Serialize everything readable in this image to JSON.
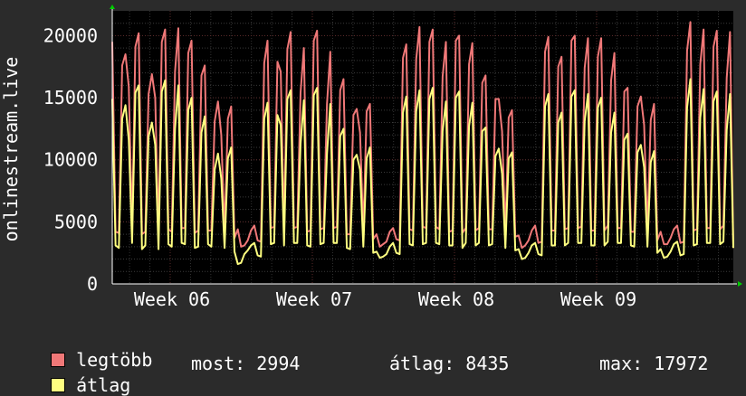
{
  "chart_data": {
    "type": "line",
    "ylabel": "onlinestream.live",
    "ylim": [
      0,
      22000
    ],
    "yticks": [
      0,
      5000,
      10000,
      15000,
      20000
    ],
    "xticks": [
      "Week 06",
      "Week 07",
      "Week 08",
      "Week 09"
    ],
    "grid": true,
    "background": "#000000",
    "series": [
      {
        "name": "legtöbb",
        "color": "#f07878",
        "values": [
          19500,
          4200,
          4100,
          17600,
          18500,
          15900,
          4500,
          19100,
          20200,
          4000,
          4200,
          15300,
          16900,
          15000,
          4100,
          19500,
          20500,
          4400,
          4200,
          17100,
          20600,
          4500,
          4500,
          18600,
          19600,
          4100,
          4300,
          16800,
          17600,
          4300,
          4300,
          13100,
          14700,
          12000,
          4100,
          13300,
          14300,
          3700,
          4400,
          3000,
          3100,
          3500,
          4300,
          4700,
          3500,
          3400,
          17800,
          19600,
          4500,
          4600,
          17900,
          17100,
          4300,
          18900,
          20300,
          4500,
          4600,
          15400,
          19000,
          4200,
          4300,
          19600,
          20400,
          4400,
          4500,
          14500,
          18700,
          4500,
          4600,
          15600,
          16500,
          4000,
          4000,
          13600,
          14100,
          12200,
          4200,
          13900,
          14500,
          3600,
          4000,
          3000,
          3200,
          3400,
          4200,
          4500,
          3600,
          3500,
          18200,
          19300,
          4400,
          4300,
          18100,
          20700,
          4600,
          4500,
          19500,
          20500,
          4600,
          4400,
          16700,
          19500,
          4200,
          4300,
          19600,
          20000,
          4100,
          4500,
          17700,
          19400,
          4300,
          4500,
          16200,
          16800,
          4400,
          4400,
          14900,
          14900,
          12300,
          4100,
          13400,
          14000,
          3800,
          3900,
          2900,
          3100,
          3500,
          4300,
          4700,
          3300,
          3400,
          18700,
          19900,
          4300,
          4300,
          17500,
          18300,
          4400,
          4500,
          19600,
          20000,
          4500,
          4600,
          17400,
          19800,
          4300,
          4300,
          18300,
          19800,
          4300,
          4700,
          16400,
          18600,
          4500,
          4500,
          15500,
          15800,
          4200,
          4200,
          14300,
          15100,
          12800,
          4200,
          13200,
          14500,
          3500,
          4200,
          3200,
          3200,
          3700,
          4400,
          4700,
          3300,
          3400,
          18800,
          21100,
          4300,
          4400,
          17700,
          20500,
          4500,
          4500,
          19100,
          20400,
          4400,
          4700,
          16600,
          20300,
          2900
        ]
      },
      {
        "name": "átlag",
        "color": "#ffff80",
        "values": [
          14900,
          3100,
          2900,
          13300,
          14400,
          11600,
          3300,
          15400,
          16000,
          2800,
          3100,
          11900,
          13000,
          11200,
          2800,
          15500,
          16400,
          3200,
          3000,
          12500,
          16000,
          3300,
          3200,
          14000,
          15000,
          2900,
          3000,
          12200,
          13500,
          3200,
          3000,
          9200,
          10500,
          8500,
          2900,
          10100,
          11000,
          2600,
          1600,
          1700,
          2400,
          2700,
          3100,
          3300,
          2300,
          2200,
          13300,
          14600,
          3200,
          3300,
          13600,
          12800,
          3100,
          14900,
          15600,
          3300,
          3300,
          11300,
          14800,
          3100,
          3000,
          15200,
          15800,
          3200,
          3300,
          10500,
          14500,
          3300,
          3300,
          11900,
          12500,
          2900,
          2800,
          10000,
          10400,
          9200,
          3000,
          10100,
          11000,
          2500,
          2600,
          2100,
          2200,
          2400,
          3000,
          3300,
          2500,
          2400,
          13800,
          15100,
          3200,
          3100,
          13900,
          15600,
          3200,
          3300,
          14900,
          15800,
          3300,
          3200,
          12300,
          14700,
          3100,
          3100,
          15000,
          15500,
          2900,
          3300,
          12700,
          14600,
          3100,
          3300,
          12300,
          12600,
          3100,
          3200,
          10300,
          10900,
          8900,
          2900,
          10100,
          10600,
          2700,
          2800,
          2000,
          2100,
          2500,
          3100,
          3300,
          2400,
          2300,
          14300,
          15300,
          3100,
          3100,
          13000,
          13800,
          3100,
          3300,
          15100,
          15600,
          3300,
          3300,
          13100,
          15300,
          3100,
          3100,
          14200,
          15000,
          3100,
          3400,
          12200,
          13800,
          3300,
          3300,
          11600,
          12100,
          3100,
          3000,
          10600,
          11200,
          9400,
          3000,
          9800,
          10700,
          2500,
          2800,
          2100,
          2200,
          2600,
          3200,
          3400,
          2300,
          2400,
          14200,
          16500,
          3100,
          3200,
          13400,
          15700,
          3300,
          3300,
          14700,
          15500,
          3200,
          3400,
          12400,
          15300,
          2900
        ]
      }
    ]
  },
  "legend": {
    "max_label": "legtöbb",
    "avg_label": "átlag"
  },
  "stats": {
    "most": "most: 2994",
    "atlag": "átlag: 8435",
    "max": "max: 17972"
  }
}
